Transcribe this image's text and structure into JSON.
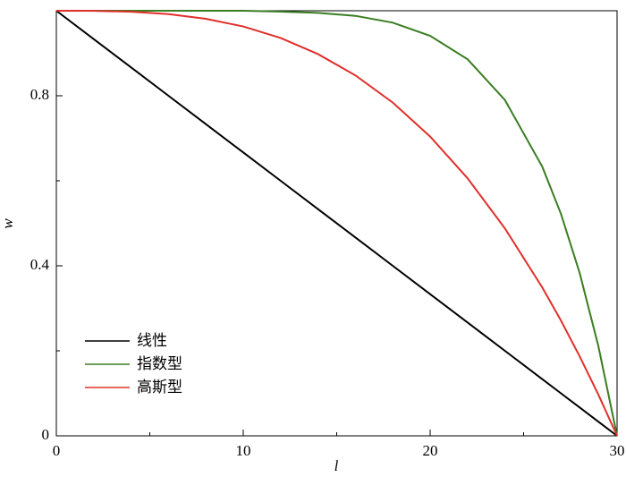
{
  "chart_data": {
    "type": "line",
    "x_label": "l",
    "y_label": "w",
    "x": [
      0,
      2,
      4,
      6,
      8,
      10,
      12,
      14,
      16,
      18,
      20,
      22,
      24,
      26,
      27,
      28,
      29,
      30
    ],
    "series": [
      {
        "name": "线性",
        "color": "#000000",
        "values": [
          1,
          0.9333,
          0.8667,
          0.8,
          0.7333,
          0.6667,
          0.6,
          0.5333,
          0.4667,
          0.4,
          0.3333,
          0.2667,
          0.2,
          0.1333,
          0.1,
          0.0667,
          0.0333,
          0
        ]
      },
      {
        "name": "指数型",
        "color": "#3a7d22",
        "values": [
          1,
          1,
          1,
          1,
          1,
          1,
          0.998,
          0.995,
          0.988,
          0.972,
          0.941,
          0.886,
          0.79,
          0.633,
          0.522,
          0.383,
          0.211,
          0
        ]
      },
      {
        "name": "高斯型",
        "color": "#e0302a",
        "values": [
          1,
          0.9997,
          0.9976,
          0.992,
          0.981,
          0.963,
          0.936,
          0.898,
          0.848,
          0.784,
          0.704,
          0.606,
          0.488,
          0.349,
          0.271,
          0.187,
          0.097,
          0
        ]
      }
    ],
    "xlim": [
      0,
      30
    ],
    "xticks": [
      0,
      10,
      20,
      30
    ],
    "xminorticks": [
      5,
      15,
      25
    ],
    "ylim": [
      0,
      1
    ],
    "yticks": [
      0,
      0.4,
      0.8
    ],
    "yminorticks": [
      0.2,
      0.6
    ],
    "legend": "lower-left"
  }
}
